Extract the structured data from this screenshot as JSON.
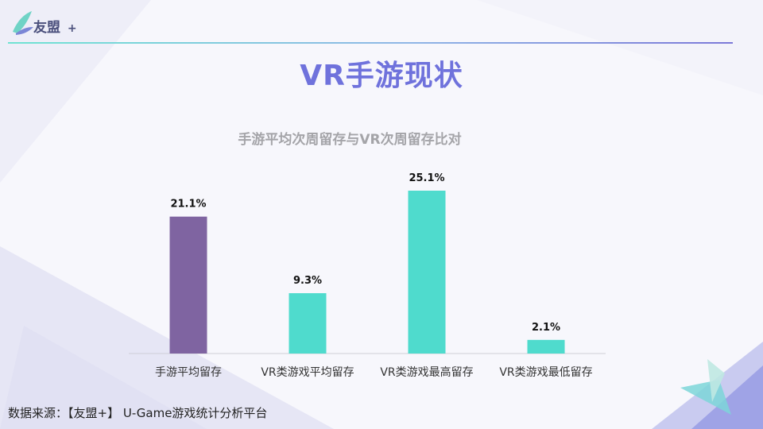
{
  "logo": {
    "name": "友盟",
    "plus": "+"
  },
  "page_title": "VR手游现状",
  "source": "数据来源：【友盟+】 U-Game游戏统计分析平台",
  "chart_data": {
    "type": "bar",
    "title": "手游平均次周留存与VR次周留存比对",
    "categories": [
      "手游平均留存",
      "VR类游戏平均留存",
      "VR类游戏最高留存",
      "VR类游戏最低留存"
    ],
    "values": [
      21.1,
      9.3,
      25.1,
      2.1
    ],
    "data_labels": [
      "21.1%",
      "9.3%",
      "25.1%",
      "2.1%"
    ],
    "bar_colors": [
      "#7f64a1",
      "#4fdbcd",
      "#4fdbcd",
      "#4fdbcd"
    ],
    "ylim": [
      0,
      25.1
    ],
    "grid": false,
    "legend": "none"
  }
}
